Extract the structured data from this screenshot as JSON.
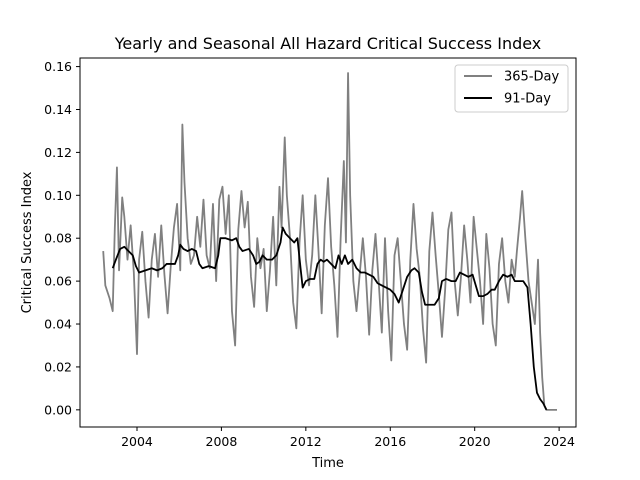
{
  "chart_data": {
    "type": "line",
    "title": "Yearly and Seasonal All Hazard Critical Success Index",
    "xlabel": "Time",
    "ylabel": "Critical Success Index",
    "xlim": [
      2001.3,
      2024.8
    ],
    "ylim": [
      -0.008,
      0.164
    ],
    "x_ticks": [
      2004,
      2008,
      2012,
      2016,
      2020,
      2024
    ],
    "x_tick_labels": [
      "2004",
      "2008",
      "2012",
      "2016",
      "2020",
      "2024"
    ],
    "y_ticks": [
      0.0,
      0.02,
      0.04,
      0.06,
      0.08,
      0.1,
      0.12,
      0.14,
      0.16
    ],
    "y_tick_labels": [
      "0.00",
      "0.02",
      "0.04",
      "0.06",
      "0.08",
      "0.10",
      "0.12",
      "0.14",
      "0.16"
    ],
    "grid": false,
    "legend_position": "top-right",
    "series": [
      {
        "name": "365-Day",
        "color": "#808080",
        "points": [
          [
            2002.4,
            0.074
          ],
          [
            2002.5,
            0.058
          ],
          [
            2002.7,
            0.052
          ],
          [
            2002.85,
            0.046
          ],
          [
            2002.95,
            0.085
          ],
          [
            2003.05,
            0.113
          ],
          [
            2003.15,
            0.065
          ],
          [
            2003.3,
            0.099
          ],
          [
            2003.4,
            0.09
          ],
          [
            2003.55,
            0.07
          ],
          [
            2003.7,
            0.086
          ],
          [
            2003.85,
            0.064
          ],
          [
            2004.0,
            0.026
          ],
          [
            2004.1,
            0.07
          ],
          [
            2004.25,
            0.083
          ],
          [
            2004.4,
            0.06
          ],
          [
            2004.55,
            0.043
          ],
          [
            2004.7,
            0.07
          ],
          [
            2004.85,
            0.082
          ],
          [
            2005.0,
            0.062
          ],
          [
            2005.15,
            0.086
          ],
          [
            2005.3,
            0.063
          ],
          [
            2005.45,
            0.045
          ],
          [
            2005.6,
            0.067
          ],
          [
            2005.75,
            0.085
          ],
          [
            2005.9,
            0.096
          ],
          [
            2006.05,
            0.065
          ],
          [
            2006.15,
            0.133
          ],
          [
            2006.25,
            0.106
          ],
          [
            2006.4,
            0.08
          ],
          [
            2006.55,
            0.068
          ],
          [
            2006.7,
            0.072
          ],
          [
            2006.85,
            0.09
          ],
          [
            2007.0,
            0.076
          ],
          [
            2007.15,
            0.098
          ],
          [
            2007.3,
            0.072
          ],
          [
            2007.45,
            0.066
          ],
          [
            2007.6,
            0.096
          ],
          [
            2007.75,
            0.06
          ],
          [
            2007.9,
            0.098
          ],
          [
            2008.05,
            0.104
          ],
          [
            2008.2,
            0.082
          ],
          [
            2008.35,
            0.1
          ],
          [
            2008.5,
            0.046
          ],
          [
            2008.65,
            0.03
          ],
          [
            2008.8,
            0.084
          ],
          [
            2008.95,
            0.102
          ],
          [
            2009.1,
            0.085
          ],
          [
            2009.25,
            0.097
          ],
          [
            2009.4,
            0.062
          ],
          [
            2009.55,
            0.048
          ],
          [
            2009.7,
            0.08
          ],
          [
            2009.85,
            0.066
          ],
          [
            2010.0,
            0.075
          ],
          [
            2010.15,
            0.046
          ],
          [
            2010.3,
            0.065
          ],
          [
            2010.45,
            0.09
          ],
          [
            2010.6,
            0.058
          ],
          [
            2010.75,
            0.104
          ],
          [
            2010.85,
            0.085
          ],
          [
            2011.0,
            0.127
          ],
          [
            2011.1,
            0.1
          ],
          [
            2011.25,
            0.08
          ],
          [
            2011.4,
            0.05
          ],
          [
            2011.55,
            0.038
          ],
          [
            2011.7,
            0.078
          ],
          [
            2011.85,
            0.1
          ],
          [
            2012.0,
            0.07
          ],
          [
            2012.15,
            0.058
          ],
          [
            2012.3,
            0.072
          ],
          [
            2012.45,
            0.1
          ],
          [
            2012.6,
            0.074
          ],
          [
            2012.75,
            0.045
          ],
          [
            2012.9,
            0.086
          ],
          [
            2013.05,
            0.108
          ],
          [
            2013.2,
            0.076
          ],
          [
            2013.35,
            0.058
          ],
          [
            2013.5,
            0.034
          ],
          [
            2013.65,
            0.08
          ],
          [
            2013.8,
            0.116
          ],
          [
            2013.9,
            0.078
          ],
          [
            2014.0,
            0.157
          ],
          [
            2014.1,
            0.1
          ],
          [
            2014.25,
            0.06
          ],
          [
            2014.4,
            0.046
          ],
          [
            2014.55,
            0.063
          ],
          [
            2014.7,
            0.08
          ],
          [
            2014.85,
            0.062
          ],
          [
            2015.0,
            0.035
          ],
          [
            2015.15,
            0.065
          ],
          [
            2015.3,
            0.082
          ],
          [
            2015.45,
            0.06
          ],
          [
            2015.6,
            0.036
          ],
          [
            2015.75,
            0.08
          ],
          [
            2015.9,
            0.046
          ],
          [
            2016.05,
            0.023
          ],
          [
            2016.2,
            0.072
          ],
          [
            2016.35,
            0.08
          ],
          [
            2016.5,
            0.06
          ],
          [
            2016.65,
            0.04
          ],
          [
            2016.8,
            0.028
          ],
          [
            2016.95,
            0.07
          ],
          [
            2017.1,
            0.096
          ],
          [
            2017.25,
            0.075
          ],
          [
            2017.4,
            0.062
          ],
          [
            2017.55,
            0.038
          ],
          [
            2017.7,
            0.022
          ],
          [
            2017.85,
            0.074
          ],
          [
            2018.0,
            0.092
          ],
          [
            2018.15,
            0.072
          ],
          [
            2018.3,
            0.054
          ],
          [
            2018.45,
            0.034
          ],
          [
            2018.6,
            0.056
          ],
          [
            2018.75,
            0.084
          ],
          [
            2018.9,
            0.092
          ],
          [
            2019.05,
            0.06
          ],
          [
            2019.2,
            0.044
          ],
          [
            2019.35,
            0.062
          ],
          [
            2019.5,
            0.086
          ],
          [
            2019.65,
            0.07
          ],
          [
            2019.8,
            0.05
          ],
          [
            2019.95,
            0.09
          ],
          [
            2020.1,
            0.075
          ],
          [
            2020.25,
            0.06
          ],
          [
            2020.4,
            0.04
          ],
          [
            2020.55,
            0.082
          ],
          [
            2020.7,
            0.066
          ],
          [
            2020.85,
            0.04
          ],
          [
            2021.0,
            0.03
          ],
          [
            2021.15,
            0.068
          ],
          [
            2021.3,
            0.08
          ],
          [
            2021.45,
            0.06
          ],
          [
            2021.6,
            0.05
          ],
          [
            2021.75,
            0.07
          ],
          [
            2021.9,
            0.062
          ],
          [
            2022.0,
            0.074
          ],
          [
            2022.15,
            0.09
          ],
          [
            2022.25,
            0.102
          ],
          [
            2022.4,
            0.08
          ],
          [
            2022.55,
            0.06
          ],
          [
            2022.7,
            0.05
          ],
          [
            2022.85,
            0.04
          ],
          [
            2023.0,
            0.07
          ],
          [
            2023.1,
            0.036
          ],
          [
            2023.2,
            0.015
          ],
          [
            2023.3,
            0.002
          ],
          [
            2023.4,
            0.0
          ],
          [
            2023.9,
            0.0
          ]
        ]
      },
      {
        "name": "91-Day",
        "color": "#000000",
        "points": [
          [
            2002.85,
            0.066
          ],
          [
            2003.0,
            0.07
          ],
          [
            2003.2,
            0.075
          ],
          [
            2003.4,
            0.076
          ],
          [
            2003.6,
            0.074
          ],
          [
            2003.8,
            0.072
          ],
          [
            2003.95,
            0.067
          ],
          [
            2004.1,
            0.064
          ],
          [
            2004.4,
            0.065
          ],
          [
            2004.7,
            0.066
          ],
          [
            2004.95,
            0.065
          ],
          [
            2005.2,
            0.066
          ],
          [
            2005.4,
            0.068
          ],
          [
            2005.6,
            0.068
          ],
          [
            2005.8,
            0.068
          ],
          [
            2005.95,
            0.072
          ],
          [
            2006.05,
            0.077
          ],
          [
            2006.2,
            0.075
          ],
          [
            2006.4,
            0.074
          ],
          [
            2006.6,
            0.075
          ],
          [
            2006.8,
            0.074
          ],
          [
            2006.95,
            0.068
          ],
          [
            2007.1,
            0.066
          ],
          [
            2007.4,
            0.067
          ],
          [
            2007.7,
            0.066
          ],
          [
            2007.85,
            0.072
          ],
          [
            2007.95,
            0.08
          ],
          [
            2008.2,
            0.08
          ],
          [
            2008.5,
            0.079
          ],
          [
            2008.7,
            0.08
          ],
          [
            2008.85,
            0.076
          ],
          [
            2009.0,
            0.074
          ],
          [
            2009.3,
            0.075
          ],
          [
            2009.5,
            0.072
          ],
          [
            2009.65,
            0.068
          ],
          [
            2009.8,
            0.069
          ],
          [
            2009.95,
            0.072
          ],
          [
            2010.15,
            0.07
          ],
          [
            2010.4,
            0.07
          ],
          [
            2010.6,
            0.072
          ],
          [
            2010.8,
            0.078
          ],
          [
            2010.9,
            0.085
          ],
          [
            2011.05,
            0.082
          ],
          [
            2011.25,
            0.08
          ],
          [
            2011.45,
            0.078
          ],
          [
            2011.6,
            0.08
          ],
          [
            2011.75,
            0.066
          ],
          [
            2011.85,
            0.057
          ],
          [
            2012.0,
            0.06
          ],
          [
            2012.2,
            0.061
          ],
          [
            2012.4,
            0.061
          ],
          [
            2012.55,
            0.068
          ],
          [
            2012.7,
            0.07
          ],
          [
            2012.85,
            0.069
          ],
          [
            2013.0,
            0.07
          ],
          [
            2013.2,
            0.068
          ],
          [
            2013.4,
            0.066
          ],
          [
            2013.55,
            0.072
          ],
          [
            2013.7,
            0.068
          ],
          [
            2013.85,
            0.072
          ],
          [
            2014.0,
            0.068
          ],
          [
            2014.2,
            0.07
          ],
          [
            2014.4,
            0.066
          ],
          [
            2014.6,
            0.064
          ],
          [
            2014.8,
            0.064
          ],
          [
            2015.0,
            0.063
          ],
          [
            2015.2,
            0.062
          ],
          [
            2015.4,
            0.059
          ],
          [
            2015.6,
            0.058
          ],
          [
            2015.8,
            0.057
          ],
          [
            2016.0,
            0.056
          ],
          [
            2016.2,
            0.054
          ],
          [
            2016.4,
            0.05
          ],
          [
            2016.6,
            0.056
          ],
          [
            2016.8,
            0.062
          ],
          [
            2017.0,
            0.065
          ],
          [
            2017.15,
            0.066
          ],
          [
            2017.35,
            0.064
          ],
          [
            2017.5,
            0.055
          ],
          [
            2017.65,
            0.049
          ],
          [
            2017.9,
            0.049
          ],
          [
            2018.1,
            0.049
          ],
          [
            2018.3,
            0.052
          ],
          [
            2018.45,
            0.06
          ],
          [
            2018.65,
            0.061
          ],
          [
            2018.9,
            0.06
          ],
          [
            2019.1,
            0.06
          ],
          [
            2019.3,
            0.064
          ],
          [
            2019.5,
            0.063
          ],
          [
            2019.7,
            0.062
          ],
          [
            2019.9,
            0.063
          ],
          [
            2020.05,
            0.058
          ],
          [
            2020.2,
            0.053
          ],
          [
            2020.4,
            0.053
          ],
          [
            2020.6,
            0.054
          ],
          [
            2020.8,
            0.056
          ],
          [
            2020.95,
            0.056
          ],
          [
            2021.15,
            0.06
          ],
          [
            2021.35,
            0.063
          ],
          [
            2021.55,
            0.062
          ],
          [
            2021.75,
            0.063
          ],
          [
            2021.9,
            0.06
          ],
          [
            2022.1,
            0.06
          ],
          [
            2022.3,
            0.06
          ],
          [
            2022.5,
            0.057
          ],
          [
            2022.65,
            0.04
          ],
          [
            2022.8,
            0.02
          ],
          [
            2022.95,
            0.008
          ],
          [
            2023.1,
            0.005
          ],
          [
            2023.25,
            0.003
          ],
          [
            2023.4,
            0.0
          ]
        ]
      }
    ]
  }
}
